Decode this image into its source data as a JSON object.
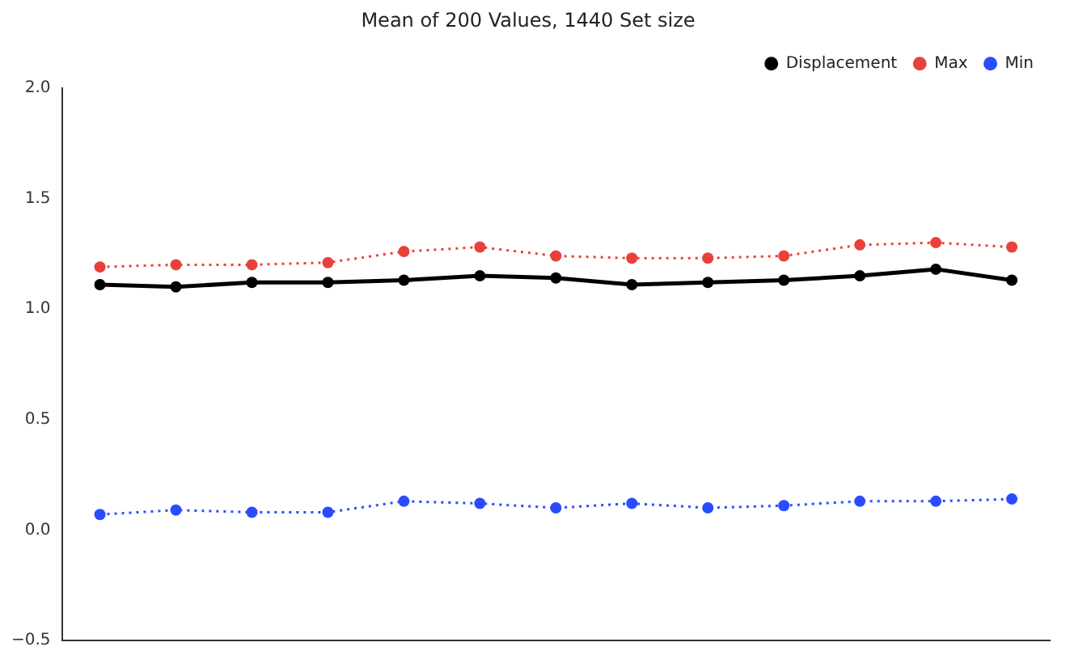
{
  "chart_data": {
    "type": "line",
    "title": "Mean of 200 Values, 1440 Set size",
    "categories": [
      null,
      null,
      null,
      null,
      null,
      null,
      null,
      null,
      null,
      null,
      null,
      null,
      null
    ],
    "series": [
      {
        "name": "Displacement",
        "color": "#000000",
        "line_style": "solid",
        "values": [
          1.11,
          1.1,
          1.12,
          1.12,
          1.13,
          1.15,
          1.14,
          1.11,
          1.12,
          1.13,
          1.15,
          1.18,
          1.13
        ]
      },
      {
        "name": "Max",
        "color": "#e8413c",
        "line_style": "dotted",
        "values": [
          1.19,
          1.2,
          1.2,
          1.21,
          1.26,
          1.28,
          1.24,
          1.23,
          1.23,
          1.24,
          1.29,
          1.3,
          1.28
        ]
      },
      {
        "name": "Min",
        "color": "#2a4cff",
        "line_style": "dotted",
        "values": [
          0.07,
          0.09,
          0.08,
          0.08,
          0.13,
          0.12,
          0.1,
          0.12,
          0.1,
          0.11,
          0.13,
          0.13,
          0.14
        ]
      }
    ],
    "ylim": [
      -0.5,
      2.0
    ],
    "yticks": [
      {
        "value": -0.5,
        "label": "−0.5"
      },
      {
        "value": 0,
        "label": "0.0"
      },
      {
        "value": 0.5,
        "label": "0.5"
      },
      {
        "value": 1,
        "label": "1.0"
      },
      {
        "value": 1.5,
        "label": "1.5"
      },
      {
        "value": 2,
        "label": "2.0"
      }
    ],
    "marker": "circle",
    "grid": false,
    "legend": "top right",
    "tick_labels": "y"
  }
}
